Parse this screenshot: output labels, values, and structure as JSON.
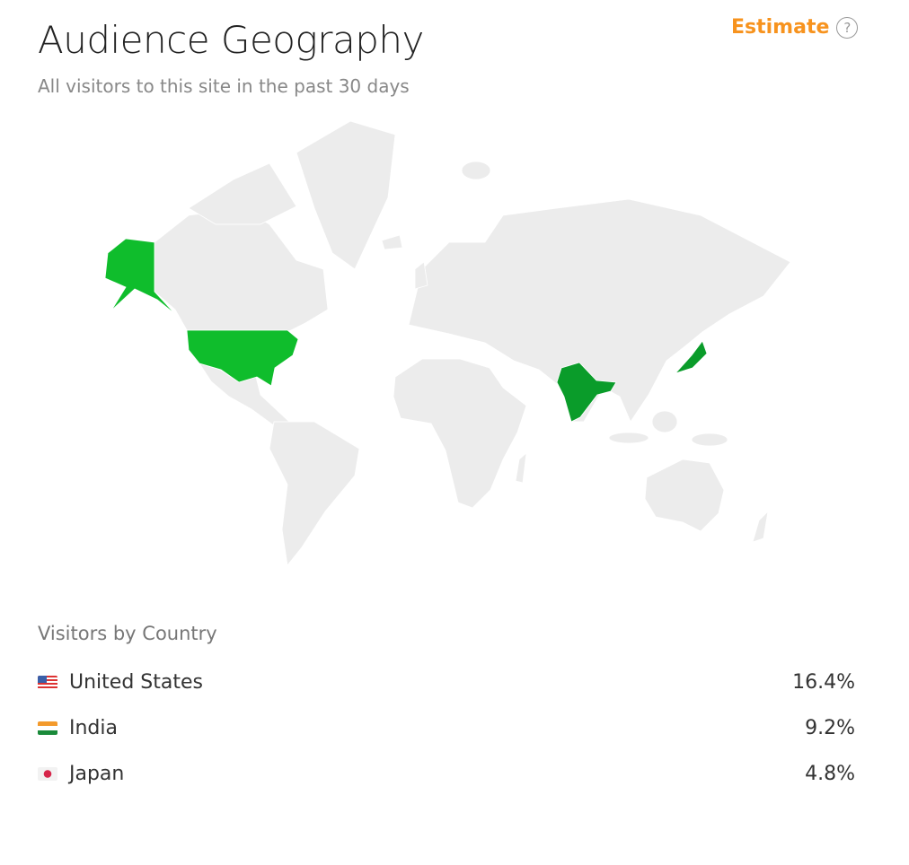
{
  "header": {
    "title": "Audience Geography",
    "subtitle": "All visitors to this site in the past 30 days",
    "estimate_label": "Estimate",
    "help_icon": "question-circle-icon"
  },
  "map": {
    "base_color": "#ececec",
    "highlight": [
      {
        "country": "United States",
        "color": "#0fbd2c"
      },
      {
        "country": "India",
        "color": "#0a9c2a"
      },
      {
        "country": "Japan",
        "color": "#0a9c2a"
      }
    ]
  },
  "list": {
    "title": "Visitors by Country",
    "items": [
      {
        "flag": "us-flag-icon",
        "country": "United States",
        "percent": "16.4%"
      },
      {
        "flag": "india-flag-icon",
        "country": "India",
        "percent": "9.2%"
      },
      {
        "flag": "japan-flag-icon",
        "country": "Japan",
        "percent": "4.8%"
      }
    ]
  },
  "colors": {
    "accent": "#f7931e"
  }
}
